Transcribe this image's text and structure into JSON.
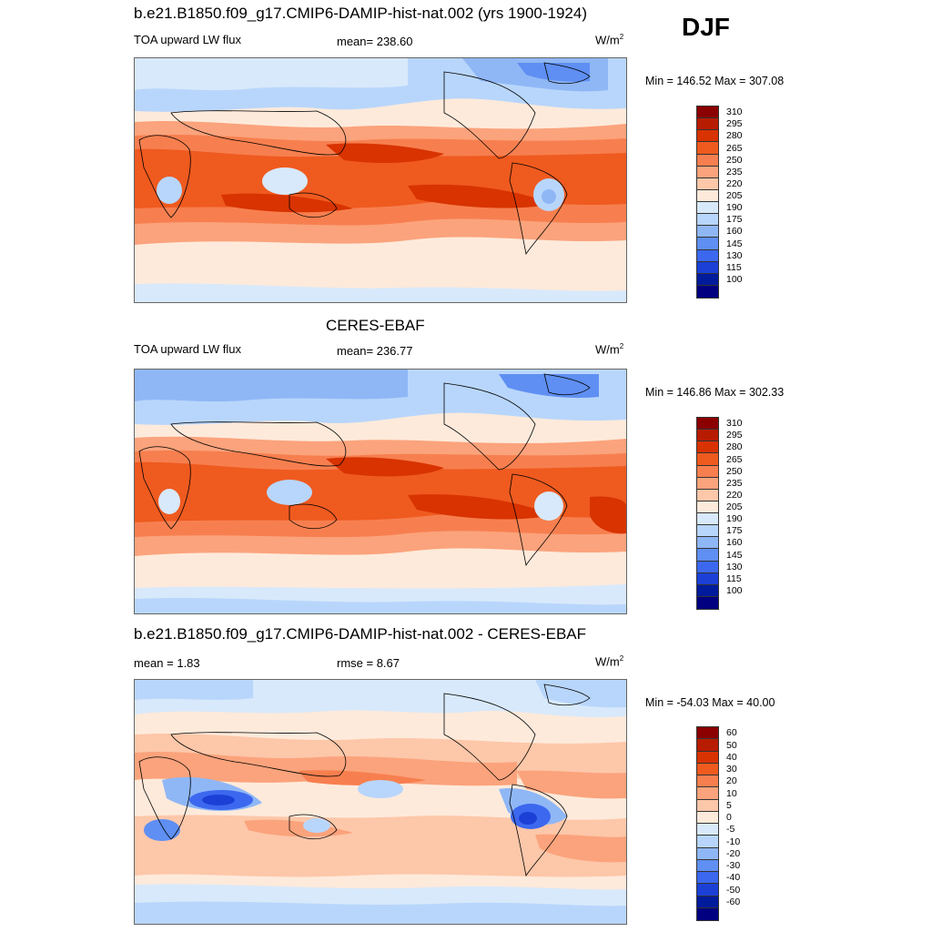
{
  "season": "DJF",
  "panels": [
    {
      "title": "b.e21.B1850.f09_g17.CMIP6-DAMIP-hist-nat.002 (yrs 1900-1924)",
      "variable": "TOA upward LW flux",
      "center_stat": "mean= 238.60",
      "units": "W/m",
      "units_exp": "2",
      "minmax": "Min = 146.52 Max = 307.08",
      "levels": [
        "310",
        "295",
        "280",
        "265",
        "250",
        "235",
        "220",
        "205",
        "190",
        "175",
        "160",
        "145",
        "130",
        "115",
        "100"
      ]
    },
    {
      "title": "CERES-EBAF",
      "variable": "TOA upward LW flux",
      "center_stat": "mean= 236.77",
      "units": "W/m",
      "units_exp": "2",
      "minmax": "Min = 146.86 Max = 302.33",
      "levels": [
        "310",
        "295",
        "280",
        "265",
        "250",
        "235",
        "220",
        "205",
        "190",
        "175",
        "160",
        "145",
        "130",
        "115",
        "100"
      ]
    },
    {
      "title": "b.e21.B1850.f09_g17.CMIP6-DAMIP-hist-nat.002 - CERES-EBAF",
      "left_stat": "mean =   1.83",
      "center_stat": "rmse =   8.67",
      "units": "W/m",
      "units_exp": "2",
      "minmax": "Min = -54.03 Max =  40.00",
      "levels": [
        "60",
        "50",
        "40",
        "30",
        "20",
        "10",
        "5",
        "0",
        "-5",
        "-10",
        "-20",
        "-30",
        "-40",
        "-50",
        "-60"
      ]
    }
  ],
  "colors": {
    "scale": [
      "#8b0000",
      "#b71c00",
      "#d83300",
      "#ef5a1f",
      "#f77f4f",
      "#fba37c",
      "#fdc7a9",
      "#feeadb",
      "#d8e9fb",
      "#b8d6fb",
      "#8fb7f6",
      "#5f8ff2",
      "#3c68ef",
      "#1c40d6",
      "#001b9c",
      "#000080"
    ],
    "land_outline": "#000000",
    "frame": "#666666"
  }
}
